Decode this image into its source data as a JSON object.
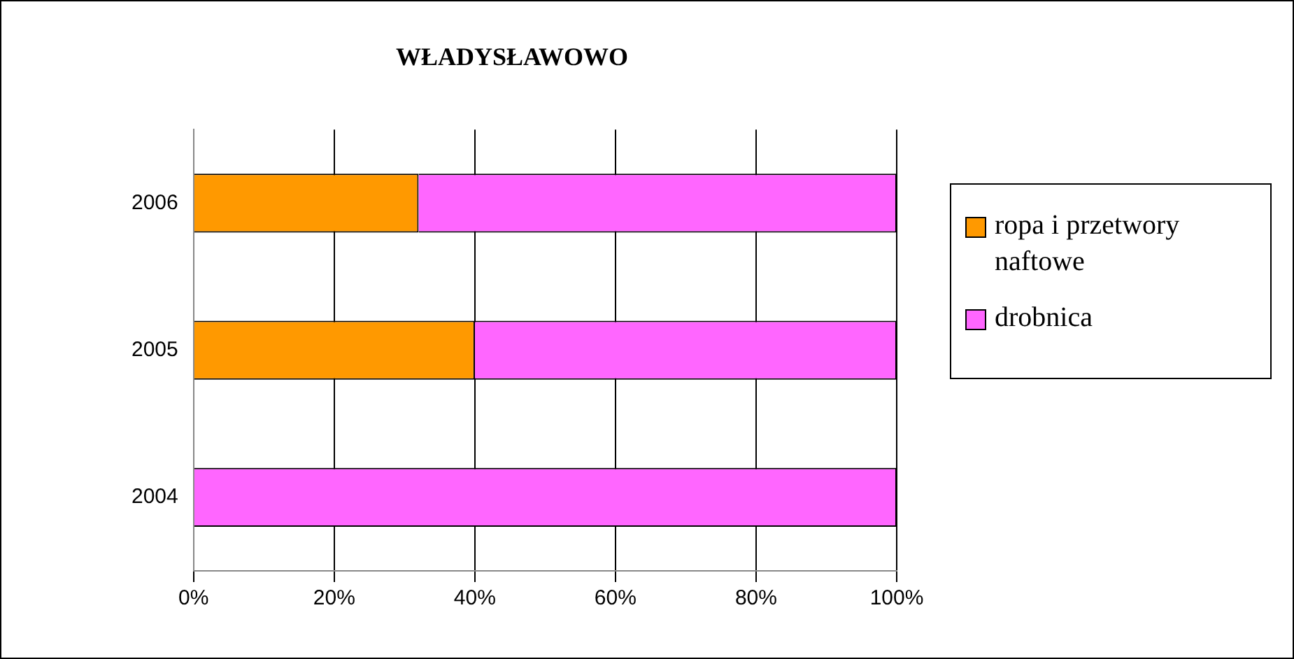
{
  "chart_data": {
    "type": "bar",
    "title": "WŁADYSŁAWOWO",
    "orientation": "horizontal",
    "stacked": true,
    "categories": [
      "2006",
      "2005",
      "2004"
    ],
    "series": [
      {
        "name": "ropa i przetwory naftowe",
        "color": "#ff9900",
        "values": [
          32,
          40,
          0
        ]
      },
      {
        "name": "drobnica",
        "color": "#ff66ff",
        "values": [
          68,
          60,
          100
        ]
      }
    ],
    "xlim": [
      0,
      100
    ],
    "xticks": [
      {
        "value": 0,
        "label": "0%"
      },
      {
        "value": 20,
        "label": "20%"
      },
      {
        "value": 40,
        "label": "40%"
      },
      {
        "value": 60,
        "label": "60%"
      },
      {
        "value": 80,
        "label": "80%"
      },
      {
        "value": 100,
        "label": "100%"
      }
    ],
    "grid": "x",
    "legend": "right"
  }
}
